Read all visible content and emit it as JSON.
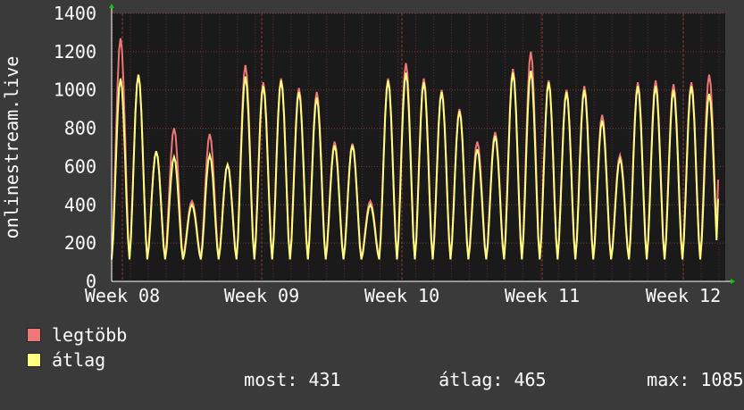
{
  "chart_data": {
    "type": "line",
    "ylabel": "onlinestream.live",
    "ylim": [
      0,
      1400
    ],
    "yticks": [
      0,
      200,
      400,
      600,
      800,
      1000,
      1200,
      1400
    ],
    "xticks": [
      "Week 08",
      "Week 09",
      "Week 10",
      "Week 11",
      "Week 12"
    ],
    "grid": true,
    "legend_position": "bottom-left",
    "series": [
      {
        "name": "legtöbb",
        "color": "#f07777",
        "daily_peaks": [
          1270,
          1080,
          680,
          800,
          420,
          770,
          610,
          1130,
          1040,
          1060,
          1010,
          990,
          730,
          720,
          420,
          1060,
          1140,
          1060,
          1000,
          900,
          730,
          780,
          1110,
          1200,
          1050,
          1000,
          1020,
          870,
          660,
          1040,
          1050,
          1030,
          1040,
          1080
        ],
        "last_value": 531
      },
      {
        "name": "átlag",
        "color": "#ffff80",
        "daily_peaks": [
          1060,
          1080,
          680,
          650,
          400,
          660,
          610,
          1070,
          1020,
          1050,
          990,
          960,
          710,
          710,
          400,
          1050,
          1090,
          1040,
          990,
          890,
          690,
          760,
          1090,
          1100,
          1040,
          990,
          1000,
          840,
          640,
          1020,
          1020,
          1000,
          1020,
          980
        ],
        "last_value": 431
      }
    ],
    "stats": {
      "most_label": "most:",
      "most_value": "431",
      "atlag_label": "átlag:",
      "atlag_value": "465",
      "max_label": "max:",
      "max_value": "1085"
    }
  }
}
